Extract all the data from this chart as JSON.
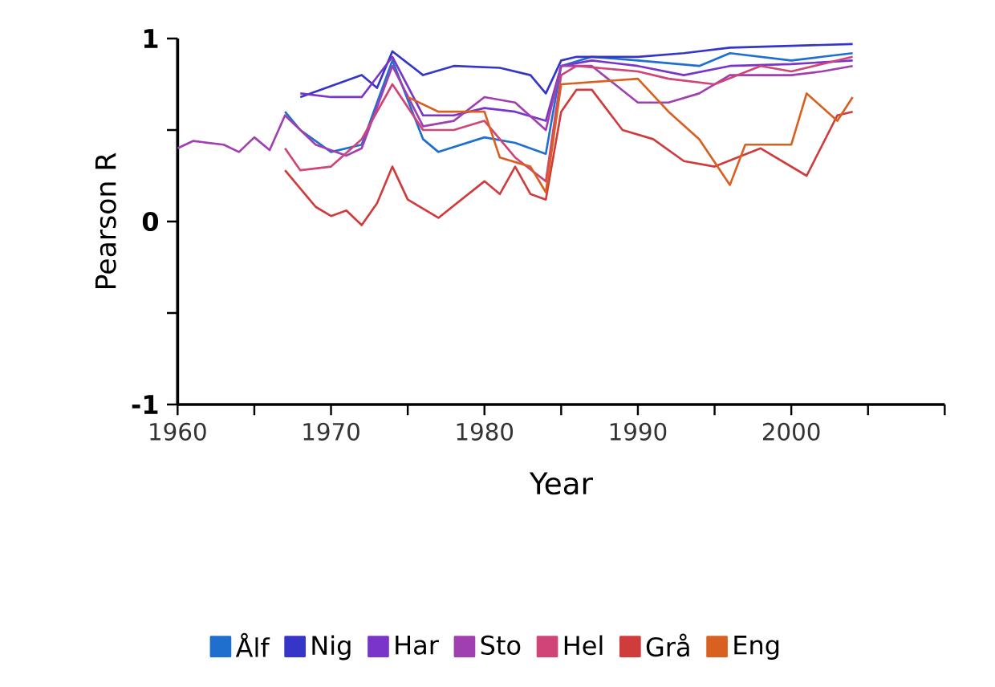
{
  "chart_data": {
    "type": "line",
    "xlabel": "Year",
    "ylabel": "Pearson R",
    "xlim": [
      1960,
      2010
    ],
    "ylim": [
      -1,
      1
    ],
    "xticks": [
      1960,
      {
        "value": 1965,
        "label": null
      },
      1970,
      {
        "value": 1975,
        "label": null
      },
      1980,
      {
        "value": 1985,
        "label": null
      },
      1990,
      {
        "value": 1995,
        "label": null
      },
      2000,
      {
        "value": 2005,
        "label": null
      },
      {
        "value": 2010,
        "label": null
      }
    ],
    "yticks": [
      -1,
      {
        "value": -0.5,
        "label": null
      },
      0,
      {
        "value": 0.5,
        "label": null
      },
      1
    ],
    "grid": false,
    "legend": "bottom",
    "marker": "none",
    "line_style": "solid",
    "series": [
      {
        "name": "Ålf",
        "color": "#1f6fcf",
        "x": [
          1967,
          1968,
          1970,
          1972,
          1974,
          1976,
          1977,
          1980,
          1982,
          1984,
          1985,
          1987,
          1990,
          1994,
          1996,
          2000,
          2002,
          2004
        ],
        "values": [
          0.6,
          0.5,
          0.38,
          0.42,
          0.88,
          0.45,
          0.38,
          0.46,
          0.43,
          0.37,
          0.85,
          0.9,
          0.88,
          0.85,
          0.92,
          0.88,
          0.9,
          0.92
        ]
      },
      {
        "name": "Nig",
        "color": "#3535c8",
        "x": [
          1968,
          1970,
          1972,
          1973,
          1974,
          1976,
          1978,
          1981,
          1983,
          1984,
          1985,
          1986,
          1990,
          1993,
          1996,
          2000,
          2004
        ],
        "values": [
          0.68,
          0.74,
          0.8,
          0.73,
          0.93,
          0.8,
          0.85,
          0.84,
          0.8,
          0.7,
          0.88,
          0.9,
          0.9,
          0.92,
          0.95,
          0.96,
          0.97
        ]
      },
      {
        "name": "Har",
        "color": "#7a35c8",
        "x": [
          1968,
          1970,
          1972,
          1974,
          1976,
          1978,
          1980,
          1982,
          1984,
          1985,
          1987,
          1990,
          1993,
          1996,
          2000,
          2004
        ],
        "values": [
          0.7,
          0.68,
          0.68,
          0.9,
          0.58,
          0.58,
          0.62,
          0.6,
          0.55,
          0.85,
          0.88,
          0.85,
          0.8,
          0.85,
          0.86,
          0.88
        ]
      },
      {
        "name": "Sto",
        "color": "#a040b0",
        "x": [
          1960,
          1961,
          1962,
          1963,
          1964,
          1965,
          1966,
          1967,
          1969,
          1971,
          1972,
          1974,
          1976,
          1978,
          1980,
          1982,
          1984,
          1985,
          1987,
          1990,
          1992,
          1994,
          1996,
          2000,
          2002,
          2004
        ],
        "values": [
          0.4,
          0.44,
          0.43,
          0.42,
          0.38,
          0.46,
          0.39,
          0.58,
          0.42,
          0.36,
          0.4,
          0.85,
          0.52,
          0.55,
          0.68,
          0.65,
          0.5,
          0.85,
          0.85,
          0.65,
          0.65,
          0.7,
          0.8,
          0.8,
          0.82,
          0.85
        ]
      },
      {
        "name": "Hel",
        "color": "#d04478",
        "x": [
          1967,
          1968,
          1970,
          1972,
          1974,
          1976,
          1978,
          1980,
          1982,
          1984,
          1985,
          1986,
          1990,
          1992,
          1995,
          1998,
          2000,
          2004
        ],
        "values": [
          0.4,
          0.28,
          0.3,
          0.45,
          0.75,
          0.5,
          0.5,
          0.55,
          0.35,
          0.22,
          0.8,
          0.85,
          0.82,
          0.78,
          0.75,
          0.85,
          0.82,
          0.9
        ]
      },
      {
        "name": "Grå",
        "color": "#d03c3c",
        "x": [
          1967,
          1969,
          1970,
          1971,
          1972,
          1973,
          1974,
          1975,
          1977,
          1980,
          1981,
          1982,
          1983,
          1984,
          1985,
          1986,
          1987,
          1989,
          1991,
          1993,
          1995,
          1998,
          2001,
          2003,
          2004
        ],
        "values": [
          0.28,
          0.08,
          0.03,
          0.06,
          -0.02,
          0.1,
          0.3,
          0.12,
          0.02,
          0.22,
          0.15,
          0.3,
          0.15,
          0.12,
          0.6,
          0.72,
          0.72,
          0.5,
          0.45,
          0.33,
          0.3,
          0.4,
          0.25,
          0.58,
          0.6
        ]
      },
      {
        "name": "Eng",
        "color": "#d86020",
        "x": [
          1975,
          1977,
          1980,
          1981,
          1983,
          1984,
          1985,
          1990,
          1992,
          1994,
          1996,
          1997,
          2000,
          2001,
          2003,
          2004
        ],
        "values": [
          0.68,
          0.6,
          0.6,
          0.35,
          0.3,
          0.16,
          0.75,
          0.78,
          0.6,
          0.45,
          0.2,
          0.42,
          0.42,
          0.7,
          0.55,
          0.68
        ]
      }
    ]
  }
}
